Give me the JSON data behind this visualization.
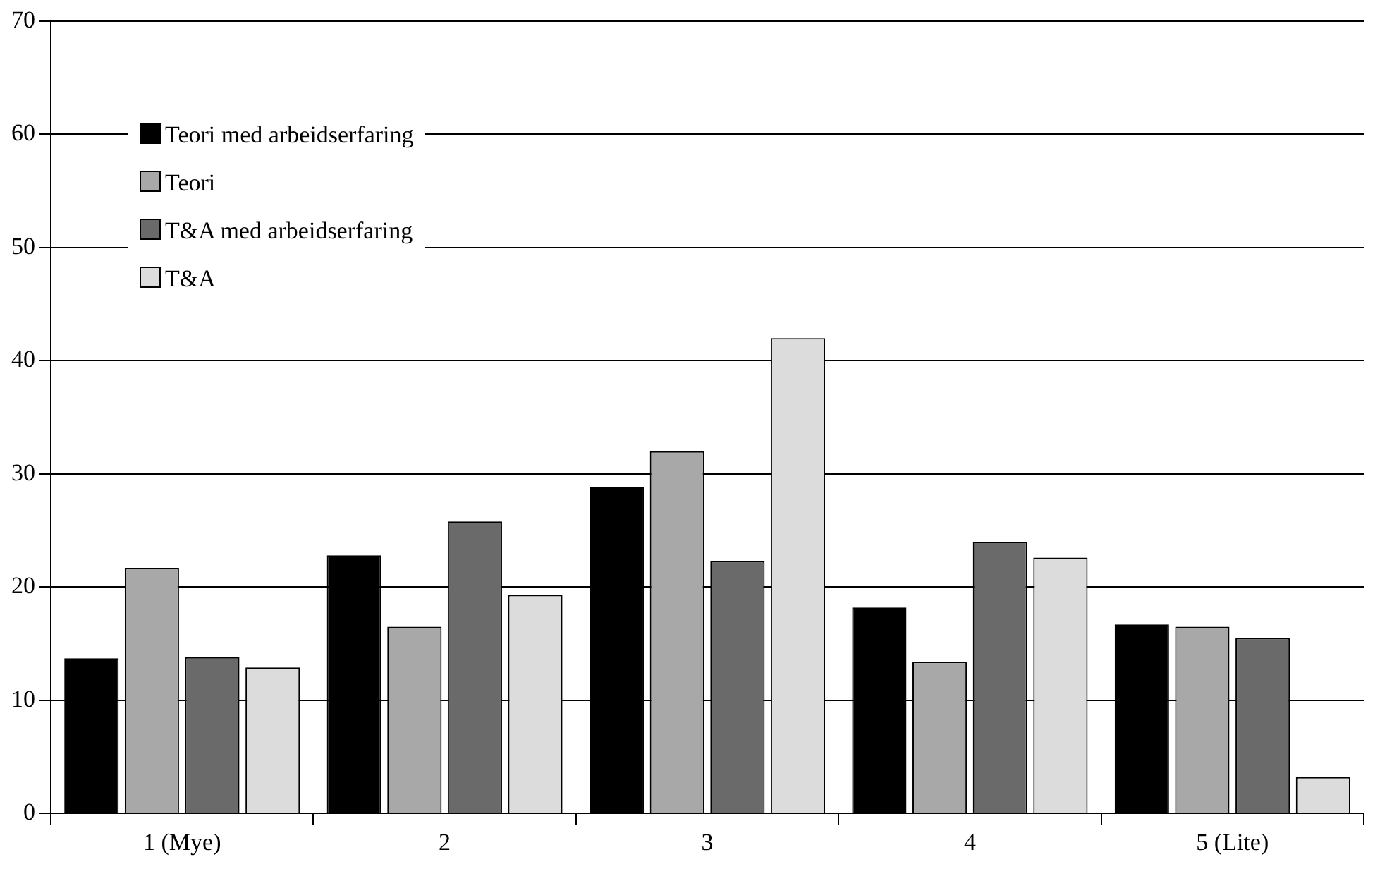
{
  "chart_data": {
    "type": "bar",
    "categories": [
      "1 (Mye)",
      "2",
      "3",
      "4",
      "5 (Lite)"
    ],
    "series": [
      {
        "name": "Teori med arbeidserfaring",
        "color": "#000000",
        "values": [
          13.7,
          22.8,
          28.8,
          18.2,
          16.7
        ]
      },
      {
        "name": "Teori",
        "color": "#a8a8a8",
        "values": [
          21.7,
          16.5,
          32,
          13.4,
          16.5
        ]
      },
      {
        "name": "T&A med arbeidserfaring",
        "color": "#6a6a6a",
        "values": [
          13.8,
          25.8,
          22.3,
          24,
          15.5
        ]
      },
      {
        "name": "T&A",
        "color": "#dcdcdc",
        "values": [
          12.9,
          19.3,
          42,
          22.6,
          3.2
        ]
      }
    ],
    "ylim": [
      0,
      70
    ],
    "yticks": [
      0,
      10,
      20,
      30,
      40,
      50,
      60,
      70
    ],
    "grid": "y",
    "legend": "top left"
  }
}
